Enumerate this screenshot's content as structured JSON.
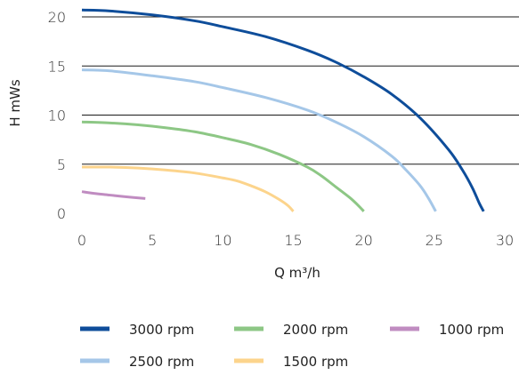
{
  "chart_data": {
    "type": "line",
    "xlabel": "Q m³/h",
    "ylabel": "H mWs",
    "xlim": [
      0,
      30
    ],
    "ylim": [
      0,
      20
    ],
    "x_ticks": [
      "0",
      "5",
      "10",
      "15",
      "20",
      "25",
      "30"
    ],
    "y_ticks": [
      "0",
      "5",
      "10",
      "15",
      "20"
    ],
    "grid": "horizontal",
    "legend_position": "bottom",
    "series": [
      {
        "name": "3000 rpm",
        "color": "#0e4d9a",
        "x": [
          0,
          2,
          5,
          8,
          10,
          13,
          16,
          18,
          20,
          22,
          24,
          26,
          27,
          27.7,
          28.2,
          28.5
        ],
        "y": [
          20.7,
          20.6,
          20.2,
          19.6,
          19,
          18,
          16.6,
          15.4,
          13.9,
          12.1,
          9.7,
          6.5,
          4.4,
          2.6,
          1.0,
          0.2
        ]
      },
      {
        "name": "2500 rpm",
        "color": "#a5c7e8",
        "x": [
          0,
          2,
          5,
          8,
          10,
          13,
          16,
          18,
          20,
          22,
          23,
          24,
          24.6,
          25.1
        ],
        "y": [
          14.6,
          14.5,
          14.0,
          13.4,
          12.8,
          11.8,
          10.5,
          9.3,
          7.8,
          5.8,
          4.4,
          2.8,
          1.5,
          0.2
        ]
      },
      {
        "name": "2000 rpm",
        "color": "#8dc785",
        "x": [
          0,
          2,
          4,
          6,
          8,
          10,
          12,
          14,
          16,
          17,
          18,
          19,
          19.6,
          20.0
        ],
        "y": [
          9.3,
          9.2,
          9.0,
          8.7,
          8.3,
          7.7,
          7.0,
          6.0,
          4.7,
          3.8,
          2.7,
          1.6,
          0.8,
          0.2
        ]
      },
      {
        "name": "1500 rpm",
        "color": "#fcd48c",
        "x": [
          0,
          2,
          4,
          6,
          8,
          10,
          11,
          12,
          13,
          14,
          14.6,
          15.0
        ],
        "y": [
          4.7,
          4.7,
          4.6,
          4.4,
          4.1,
          3.6,
          3.3,
          2.8,
          2.2,
          1.4,
          0.8,
          0.2
        ]
      },
      {
        "name": "1000 rpm",
        "color": "#c08cc1",
        "x": [
          0,
          1,
          2,
          3,
          4.5
        ],
        "y": [
          2.2,
          2.0,
          1.85,
          1.7,
          1.5
        ]
      }
    ]
  }
}
